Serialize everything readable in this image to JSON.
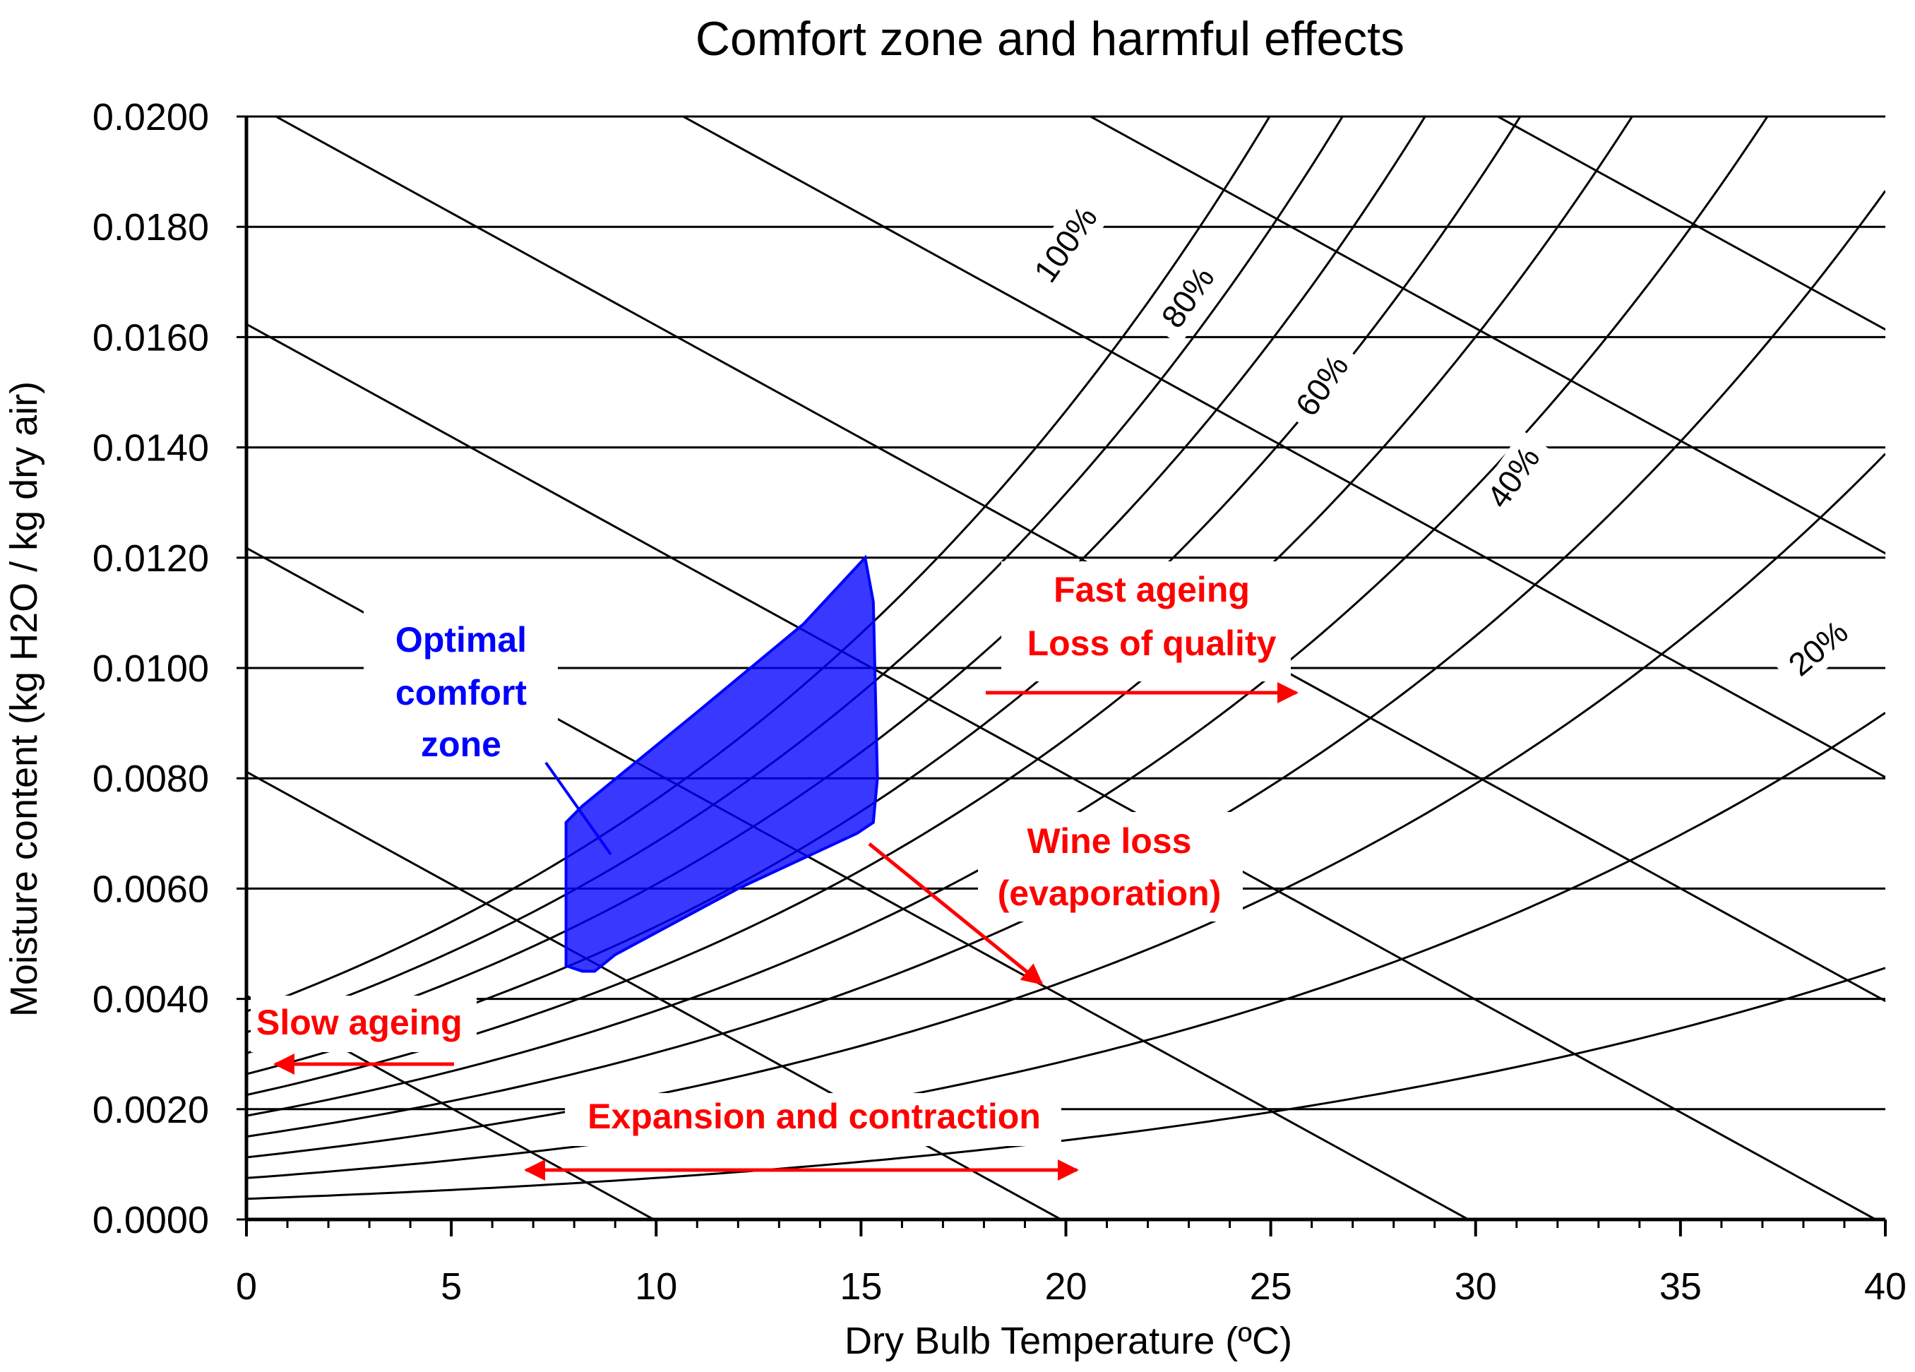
{
  "chart_data": {
    "type": "psychrometric",
    "title": "Comfort zone and harmful effects",
    "xlabel": "Dry Bulb Temperature (ºC)",
    "ylabel": "Moisture content (kg H2O / kg dry air)",
    "xlim": [
      0,
      40
    ],
    "ylim": [
      0,
      0.02
    ],
    "x_ticks": [
      "0",
      "5",
      "10",
      "15",
      "20",
      "25",
      "30",
      "35",
      "40"
    ],
    "y_ticks": [
      "0.0000",
      "0.0020",
      "0.0040",
      "0.0060",
      "0.0080",
      "0.0100",
      "0.0120",
      "0.0140",
      "0.0160",
      "0.0180",
      "0.0200"
    ],
    "grid": "horizontal",
    "relative_humidity_curves": [
      10,
      20,
      30,
      40,
      50,
      60,
      70,
      80,
      90,
      100
    ],
    "rh_labels": [
      "100%",
      "80%",
      "60%",
      "40%",
      "20%"
    ],
    "comfort_zone": {
      "color": "#0000ff",
      "polygon": [
        [
          8.2,
          0.0045
        ],
        [
          7.8,
          0.0046
        ],
        [
          7.8,
          0.0072
        ],
        [
          8.2,
          0.0075
        ],
        [
          11,
          0.0092
        ],
        [
          13.6,
          0.0108
        ],
        [
          15.1,
          0.012
        ],
        [
          15.3,
          0.0112
        ],
        [
          15.4,
          0.008
        ],
        [
          15.3,
          0.0072
        ],
        [
          14.9,
          0.007
        ],
        [
          12,
          0.006
        ],
        [
          9,
          0.0048
        ],
        [
          8.5,
          0.0045
        ]
      ]
    },
    "annotations": {
      "optimal": [
        "Optimal",
        "comfort",
        "zone"
      ],
      "fast_ageing": [
        "Fast ageing",
        "Loss of quality"
      ],
      "wine_loss": [
        "Wine loss",
        "(evaporation)"
      ],
      "slow_ageing": "Slow ageing",
      "expansion": "Expansion and contraction"
    },
    "accent_red": "#ff0000",
    "accent_blue": "#0000ff"
  }
}
